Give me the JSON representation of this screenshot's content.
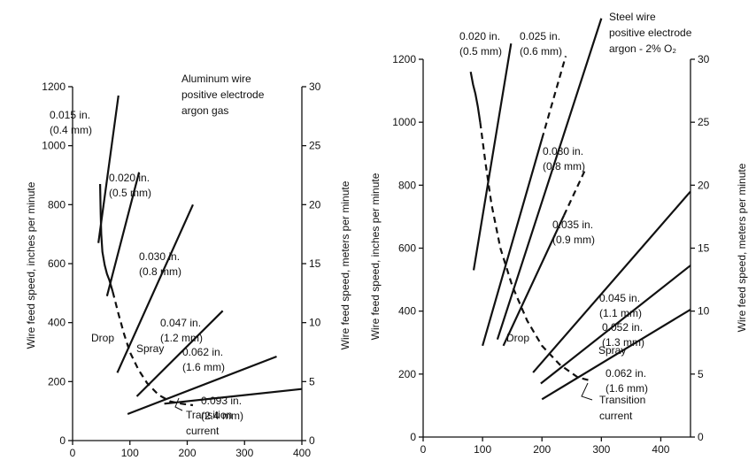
{
  "chart_data": [
    {
      "type": "line",
      "title_lines": [
        "Aluminum wire",
        "positive electrode",
        "argon gas"
      ],
      "xlabel": "",
      "ylabel": "Wire feed speed, inches per minute",
      "y2label": "Wire feed speed, meters per minute",
      "xlim": [
        0,
        400
      ],
      "ylim": [
        0,
        1200
      ],
      "y2lim": [
        0,
        30
      ],
      "xticks": [
        0,
        100,
        200,
        300,
        400
      ],
      "yticks": [
        0,
        200,
        400,
        600,
        800,
        1000,
        1200
      ],
      "y2ticks": [
        0,
        5,
        10,
        15,
        20,
        25,
        30
      ],
      "grid": false,
      "series": [
        {
          "name": "0.015 in. (0.4 mm)",
          "label_lines": [
            "0.015 in.",
            "(0.4 mm)"
          ],
          "x": [
            45,
            80
          ],
          "y": [
            670,
            1170
          ],
          "dashed_x": null
        },
        {
          "name": "0.020 in. (0.5 mm)",
          "label_lines": [
            "0.020 in.",
            "(0.5 mm)"
          ],
          "x": [
            60,
            116
          ],
          "y": [
            490,
            910
          ],
          "dashed_x": null
        },
        {
          "name": "0.030 in. (0.8 mm)",
          "label_lines": [
            "0.030 in.",
            "(0.8 mm)"
          ],
          "x": [
            78,
            210
          ],
          "y": [
            230,
            800
          ],
          "dashed_x": null
        },
        {
          "name": "0.047 in. (1.2 mm)",
          "label_lines": [
            "0.047 in.",
            "(1.2 mm)"
          ],
          "x": [
            112,
            262
          ],
          "y": [
            150,
            440
          ],
          "dashed_x": null
        },
        {
          "name": "0.062 in. (1.6 mm)",
          "label_lines": [
            "0.062 in.",
            "(1.6 mm)"
          ],
          "x": [
            96,
            356
          ],
          "y": [
            90,
            285
          ],
          "dashed_x": null
        },
        {
          "name": "0.093 in. (2.4 mm)",
          "label_lines": [
            "0.093 in.",
            "(2.4 mm)"
          ],
          "x": [
            160,
            400
          ],
          "y": [
            125,
            175
          ],
          "dashed_x": null
        }
      ],
      "transition_curve": {
        "solid": {
          "x": [
            48,
            49,
            50,
            52,
            56,
            60,
            64,
            70
          ],
          "y": [
            870,
            770,
            700,
            640,
            595,
            565,
            545,
            505
          ]
        },
        "dashed": {
          "x": [
            70,
            80,
            90,
            100,
            115,
            130,
            150,
            170,
            190,
            210
          ],
          "y": [
            505,
            430,
            360,
            300,
            240,
            195,
            155,
            133,
            125,
            120
          ]
        }
      },
      "annotations": [
        {
          "text": "Drop"
        },
        {
          "text": "Spray"
        },
        {
          "text_lines": [
            "Transition",
            "current"
          ]
        }
      ]
    },
    {
      "type": "line",
      "title_lines": [
        "Steel wire",
        "positive electrode",
        "argon - 2% O₂"
      ],
      "xlabel": "",
      "ylabel": "Wire feed speed, inches per minute",
      "y2label": "Wire feed speed, meters per minute",
      "xlim": [
        0,
        450
      ],
      "ylim": [
        0,
        1200
      ],
      "y2lim": [
        0,
        30
      ],
      "xticks": [
        0,
        100,
        200,
        300,
        400
      ],
      "yticks": [
        0,
        200,
        400,
        600,
        800,
        1000,
        1200
      ],
      "y2ticks": [
        0,
        5,
        10,
        15,
        20,
        25,
        30
      ],
      "grid": false,
      "series": [
        {
          "name": "0.020 in. (0.5 mm)",
          "label_lines": [
            "0.020 in.",
            "(0.5 mm)"
          ],
          "x": [
            85,
            148
          ],
          "y": [
            530,
            1250
          ],
          "dashed_x": null
        },
        {
          "name": "0.025 in. (0.6 mm)",
          "label_lines": [
            "0.025 in.",
            "(0.6 mm)"
          ],
          "x": [
            100,
            240
          ],
          "y": [
            290,
            1210
          ],
          "dashed_x": [
            200,
            240
          ]
        },
        {
          "name": "0.030 in. (0.8 mm)",
          "label_lines": [
            "0.030 in.",
            "(0.8 mm)"
          ],
          "x": [
            125,
            300
          ],
          "y": [
            310,
            1330
          ],
          "dashed_x": null
        },
        {
          "name": "0.035 in. (0.9 mm)",
          "label_lines": [
            "0.035 in.",
            "(0.9 mm)"
          ],
          "x": [
            135,
            273
          ],
          "y": [
            290,
            850
          ],
          "dashed_x": [
            237,
            273
          ]
        },
        {
          "name": "0.045 in. (1.1 mm)",
          "label_lines": [
            "0.045 in.",
            "(1.1 mm)"
          ],
          "x": [
            185,
            450
          ],
          "y": [
            205,
            780
          ],
          "dashed_x": null
        },
        {
          "name": "0.052 in. (1.3 mm)",
          "label_lines": [
            "0.052 in.",
            "(1.3 mm)"
          ],
          "x": [
            198,
            450
          ],
          "y": [
            170,
            545
          ],
          "dashed_x": null
        },
        {
          "name": "0.062 in. (1.6 mm)",
          "label_lines": [
            "0.062 in.",
            "(1.6 mm)"
          ],
          "x": [
            200,
            450
          ],
          "y": [
            120,
            405
          ],
          "dashed_x": null
        }
      ],
      "transition_curve": {
        "solid": {
          "x": [
            80,
            84,
            88,
            92,
            96
          ],
          "y": [
            1160,
            1120,
            1090,
            1050,
            1000
          ]
        },
        "dashed": {
          "x": [
            96,
            105,
            115,
            130,
            150,
            175,
            200,
            230,
            260,
            280
          ],
          "y": [
            1000,
            870,
            740,
            600,
            480,
            370,
            290,
            230,
            190,
            180
          ]
        }
      },
      "annotations": [
        {
          "text": "Drop"
        },
        {
          "text": "Spray"
        },
        {
          "text_lines": [
            "Transition",
            "current"
          ]
        }
      ]
    }
  ]
}
